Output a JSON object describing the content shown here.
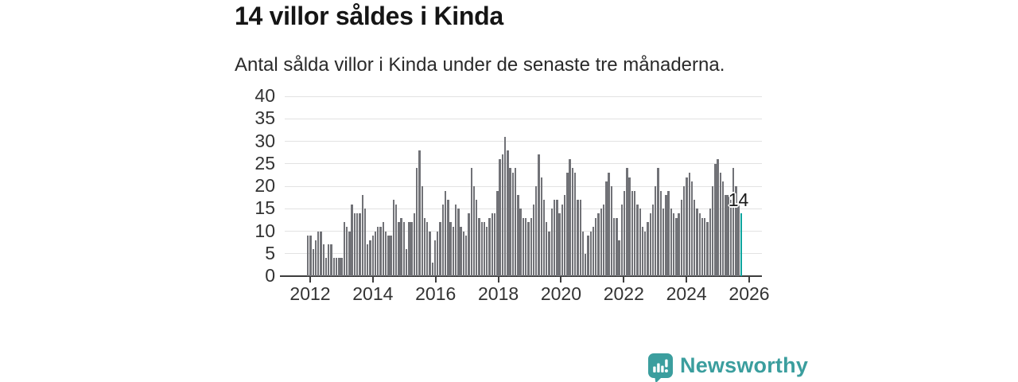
{
  "title": "14 villor såldes i Kinda",
  "subtitle": "Antal sålda villor i Kinda under de senaste tre månaderna.",
  "annotation": {
    "label": "14"
  },
  "branding": {
    "name": "Newsworthy",
    "icon": "newsworthy-speech-bubble-barchart-icon",
    "color": "#3b9e9e"
  },
  "colors": {
    "bar": "#717277",
    "highlight": "#0da49e",
    "gridline": "#e2e2e2",
    "axis": "#3d3d3d",
    "label_text": "#333333"
  },
  "chart_data": {
    "type": "bar",
    "title": "14 villor såldes i Kinda",
    "xlabel": "",
    "ylabel": "",
    "ylim": [
      0,
      40
    ],
    "yticks": [
      0,
      5,
      10,
      15,
      20,
      25,
      30,
      35,
      40
    ],
    "xtick_labels": [
      "2012",
      "2014",
      "2016",
      "2018",
      "2020",
      "2022",
      "2024",
      "2026"
    ],
    "frequency": "monthly",
    "x_start": "2012-01",
    "grid": "horizontal",
    "legend": "none",
    "highlight_last": true,
    "highlight_value": 14,
    "values": [
      9,
      9,
      6,
      8,
      10,
      10,
      7,
      4,
      7,
      7,
      4,
      4,
      4,
      4,
      12,
      11,
      10,
      16,
      14,
      14,
      14,
      18,
      15,
      7,
      8,
      9,
      10,
      11,
      11,
      12,
      10,
      9,
      9,
      17,
      16,
      12,
      13,
      12,
      6,
      12,
      12,
      14,
      24,
      28,
      20,
      13,
      12,
      10,
      3,
      8,
      10,
      12,
      16,
      19,
      17,
      12,
      11,
      16,
      15,
      11,
      10,
      9,
      14,
      24,
      20,
      17,
      13,
      12,
      12,
      11,
      13,
      14,
      14,
      19,
      26,
      27,
      31,
      28,
      24,
      23,
      24,
      18,
      15,
      13,
      13,
      12,
      13,
      16,
      20,
      27,
      22,
      17,
      12,
      10,
      15,
      17,
      17,
      14,
      16,
      18,
      23,
      26,
      24,
      23,
      17,
      17,
      10,
      5,
      9,
      10,
      11,
      13,
      14,
      15,
      16,
      21,
      23,
      20,
      13,
      13,
      8,
      16,
      19,
      24,
      22,
      19,
      19,
      16,
      15,
      11,
      10,
      12,
      14,
      16,
      20,
      24,
      19,
      15,
      18,
      19,
      15,
      14,
      13,
      14,
      17,
      20,
      22,
      23,
      21,
      17,
      15,
      14,
      13,
      13,
      12,
      15,
      20,
      25,
      26,
      23,
      21,
      18,
      18,
      17,
      24,
      20,
      16,
      14
    ]
  }
}
